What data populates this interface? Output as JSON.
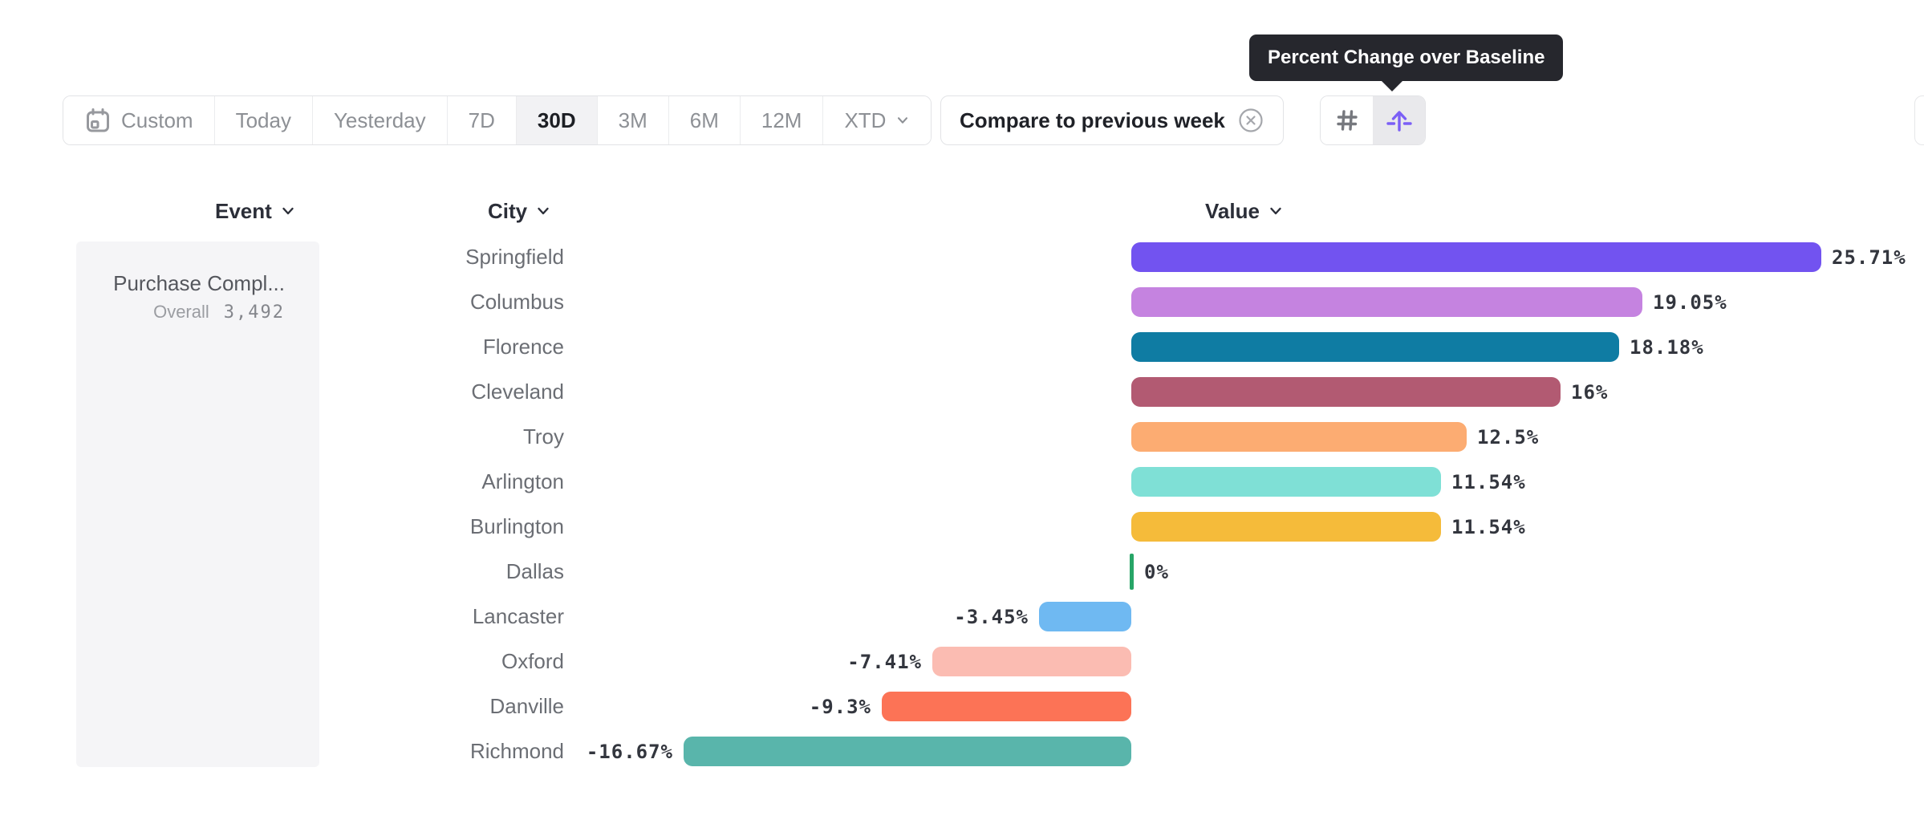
{
  "tooltip": {
    "text": "Percent Change over Baseline"
  },
  "toolbar": {
    "date_ranges": [
      {
        "label": "Custom",
        "icon": "calendar-icon",
        "selected": false
      },
      {
        "label": "Today",
        "selected": false
      },
      {
        "label": "Yesterday",
        "selected": false
      },
      {
        "label": "7D",
        "selected": false
      },
      {
        "label": "30D",
        "selected": true
      },
      {
        "label": "3M",
        "selected": false
      },
      {
        "label": "6M",
        "selected": false
      },
      {
        "label": "12M",
        "selected": false
      },
      {
        "label": "XTD",
        "chevron": true,
        "selected": false
      }
    ],
    "compare": {
      "label": "Compare to previous week",
      "remove_icon": "circle-x-icon"
    },
    "view_toggles": [
      {
        "name": "absolute-values",
        "icon": "hash-icon",
        "selected": false
      },
      {
        "name": "percent-change-over-baseline",
        "icon": "arrow-up-baseline-icon",
        "selected": true
      }
    ]
  },
  "columns": [
    {
      "label": "Event",
      "sortable": true
    },
    {
      "label": "City",
      "sortable": true
    },
    {
      "label": "Value",
      "sortable": true
    }
  ],
  "event_panel": {
    "event_name": "Purchase Compl...",
    "overall_label": "Overall",
    "overall_value": "3,492"
  },
  "chart_data": {
    "type": "bar",
    "orientation": "horizontal",
    "title": "Percent Change over Baseline",
    "unit": "%",
    "xlim": [
      -16.67,
      25.71
    ],
    "grid": false,
    "legend": false,
    "categories": [
      "Springfield",
      "Columbus",
      "Florence",
      "Cleveland",
      "Troy",
      "Arlington",
      "Burlington",
      "Dallas",
      "Lancaster",
      "Oxford",
      "Danville",
      "Richmond"
    ],
    "values": [
      25.71,
      19.05,
      18.18,
      16,
      12.5,
      11.54,
      11.54,
      0,
      -3.45,
      -7.41,
      -9.3,
      -16.67
    ],
    "value_labels": [
      "25.71%",
      "19.05%",
      "18.18%",
      "16%",
      "12.5%",
      "11.54%",
      "11.54%",
      "0%",
      "-3.45%",
      "-7.41%",
      "-9.3%",
      "-16.67%"
    ],
    "bar_colors": [
      "#7253f0",
      "#c583e0",
      "#0f7ca3",
      "#b25a72",
      "#fcac72",
      "#7fe0d6",
      "#f5bb3a",
      "#27a567",
      "#6fb9f2",
      "#fbbcb2",
      "#fc7356",
      "#59b5ab"
    ],
    "baseline_color": "#27a567"
  },
  "colors": {
    "accent_purple": "#7b5ff6",
    "tooltip_bg": "#26272d",
    "border": "#e2e3e6",
    "selected_segment_bg": "#f2f2f4",
    "panel_bg": "#f5f5f7",
    "muted_text": "#8d9095",
    "header_text": "#2b2e38"
  }
}
